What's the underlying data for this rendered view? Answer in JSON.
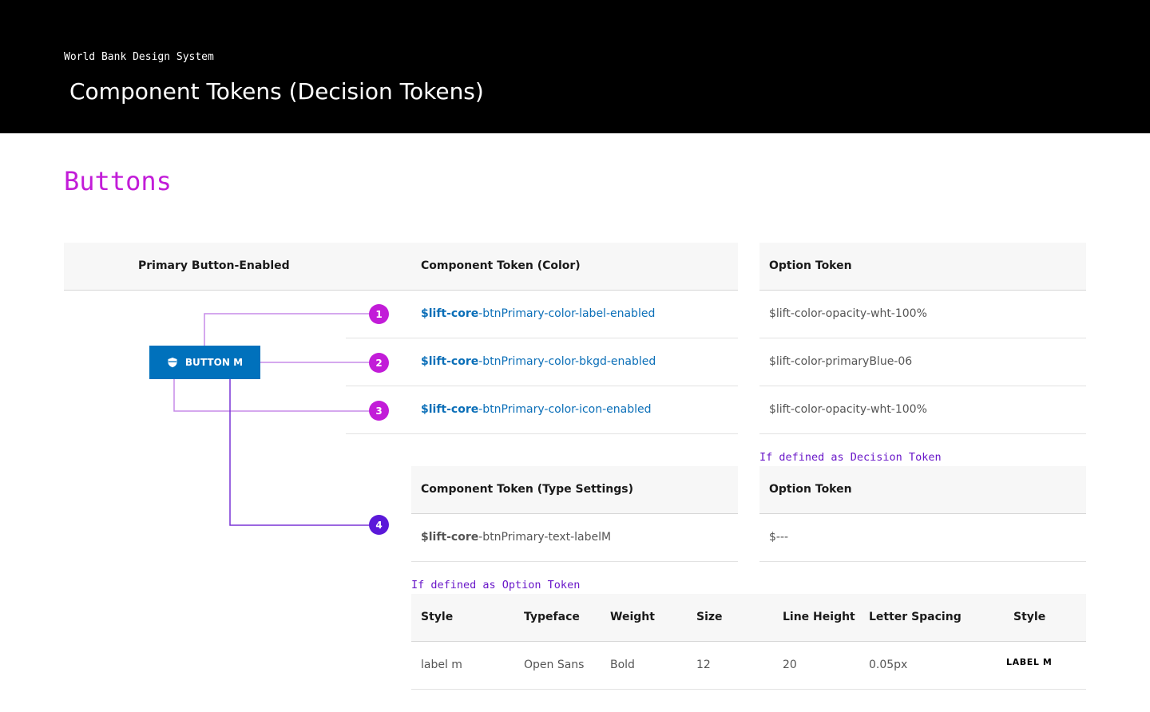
{
  "header": {
    "brand": "World Bank Design System",
    "title": "Component Tokens (Decision Tokens)"
  },
  "section_title": "Buttons",
  "colors": {
    "header_bg": "#000000",
    "section_title": "#c21cd8",
    "token_link": "#0b6fb8",
    "button_bg": "#0071bc",
    "note": "#6a18c9",
    "badge_magenta": "#c21cd8",
    "badge_purple": "#5b18d9"
  },
  "demo": {
    "header": "Primary Button-Enabled",
    "button_label": "BUTTON M",
    "button_icon": "shield-icon"
  },
  "color_table": {
    "header_component": "Component Token (Color)",
    "header_option": "Option Token",
    "rows": [
      {
        "badge": "1",
        "prefix": "$lift-core",
        "suffix": "-btnPrimary-color-label-enabled",
        "option": "$lift-color-opacity-wht-100%"
      },
      {
        "badge": "2",
        "prefix": "$lift-core",
        "suffix": "-btnPrimary-color-bkgd-enabled",
        "option": "$lift-color-primaryBlue-06"
      },
      {
        "badge": "3",
        "prefix": "$lift-core",
        "suffix": "-btnPrimary-color-icon-enabled",
        "option": "$lift-color-opacity-wht-100%"
      }
    ]
  },
  "type_table": {
    "note": "If defined as Decision Token",
    "header_component": "Component Token (Type Settings)",
    "header_option": "Option Token",
    "row": {
      "badge": "4",
      "prefix": "$lift-core",
      "suffix": "-btnPrimary-text-labelM",
      "option": "$---"
    }
  },
  "style_table": {
    "note": "If defined as Option Token",
    "headers": [
      "Style",
      "Typeface",
      "Weight",
      "Size",
      "Line Height",
      "Letter Spacing",
      "Style"
    ],
    "row": [
      "label m",
      "Open Sans",
      "Bold",
      "12",
      "20",
      "0.05px",
      "LABEL M"
    ]
  }
}
